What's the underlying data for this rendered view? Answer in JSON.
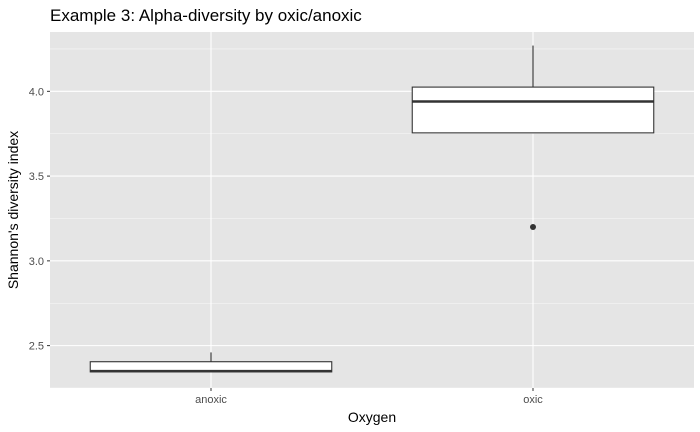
{
  "chart_data": {
    "type": "boxplot",
    "title": "Example 3: Alpha-diversity by oxic/anoxic",
    "xlabel": "Oxygen",
    "ylabel": "Shannon's diversity index",
    "categories": [
      "anoxic",
      "oxic"
    ],
    "boxes": [
      {
        "category": "anoxic",
        "whisker_low": 2.345,
        "q1": 2.345,
        "median": 2.35,
        "q3": 2.405,
        "whisker_high": 2.46,
        "outliers": []
      },
      {
        "category": "oxic",
        "whisker_low": 3.755,
        "q1": 3.755,
        "median": 3.94,
        "q3": 4.025,
        "whisker_high": 4.27,
        "outliers": [
          3.2
        ]
      }
    ],
    "ylim": [
      2.25,
      4.35
    ],
    "yticks": [
      2.5,
      3.0,
      3.5,
      4.0
    ],
    "ytick_labels": [
      "2.5",
      "3.0",
      "3.5",
      "4.0"
    ],
    "grid": true,
    "colors": {
      "panel": "#e5e5e5",
      "grid_major": "#ffffff",
      "box_fill": "#ffffff",
      "box_line": "#333333",
      "tick_text": "#4d4d4d"
    }
  }
}
